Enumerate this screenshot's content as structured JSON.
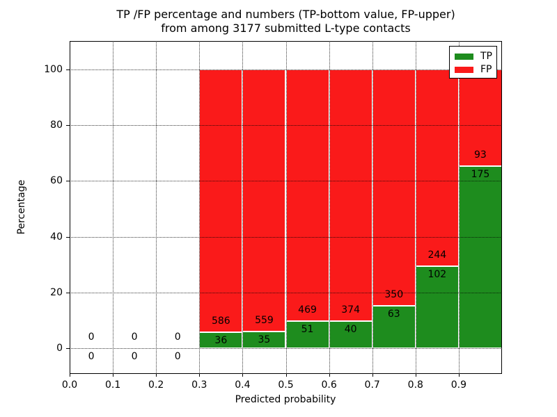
{
  "title": {
    "line1": "TP /FP percentage and numbers (TP-bottom value, FP-upper)",
    "line2": "from among 3177 submitted L-type contacts"
  },
  "chart_data": {
    "type": "bar",
    "stacked": true,
    "normalized_to_percent": true,
    "title": "TP /FP percentage and numbers (TP-bottom value, FP-upper) from among 3177 submitted L-type contacts",
    "xlabel": "Predicted probability",
    "ylabel": "Percentage",
    "total_contacts": 3177,
    "bin_width": 0.1,
    "bin_starts": [
      0.0,
      0.1,
      0.2,
      0.3,
      0.4,
      0.5,
      0.6,
      0.7,
      0.8,
      0.9
    ],
    "series": [
      {
        "name": "TP",
        "color": "#1e8c1e",
        "values": [
          0,
          0,
          0,
          36,
          35,
          51,
          40,
          63,
          102,
          175
        ]
      },
      {
        "name": "FP",
        "color": "#fa1a1a",
        "values": [
          0,
          0,
          0,
          586,
          559,
          469,
          374,
          350,
          244,
          93
        ]
      }
    ],
    "x_ticks": [
      "0.0",
      "0.1",
      "0.2",
      "0.3",
      "0.4",
      "0.5",
      "0.6",
      "0.7",
      "0.8",
      "0.9"
    ],
    "y_ticks": [
      0,
      20,
      40,
      60,
      80,
      100
    ],
    "xlim": [
      0.0,
      1.0
    ],
    "ylim": [
      -10,
      110
    ],
    "grid": "dotted",
    "legend": {
      "position": "upper right"
    }
  },
  "colors": {
    "tp": "#1e8c1e",
    "fp": "#fa1a1a",
    "axis": "#000000",
    "background": "#ffffff"
  }
}
